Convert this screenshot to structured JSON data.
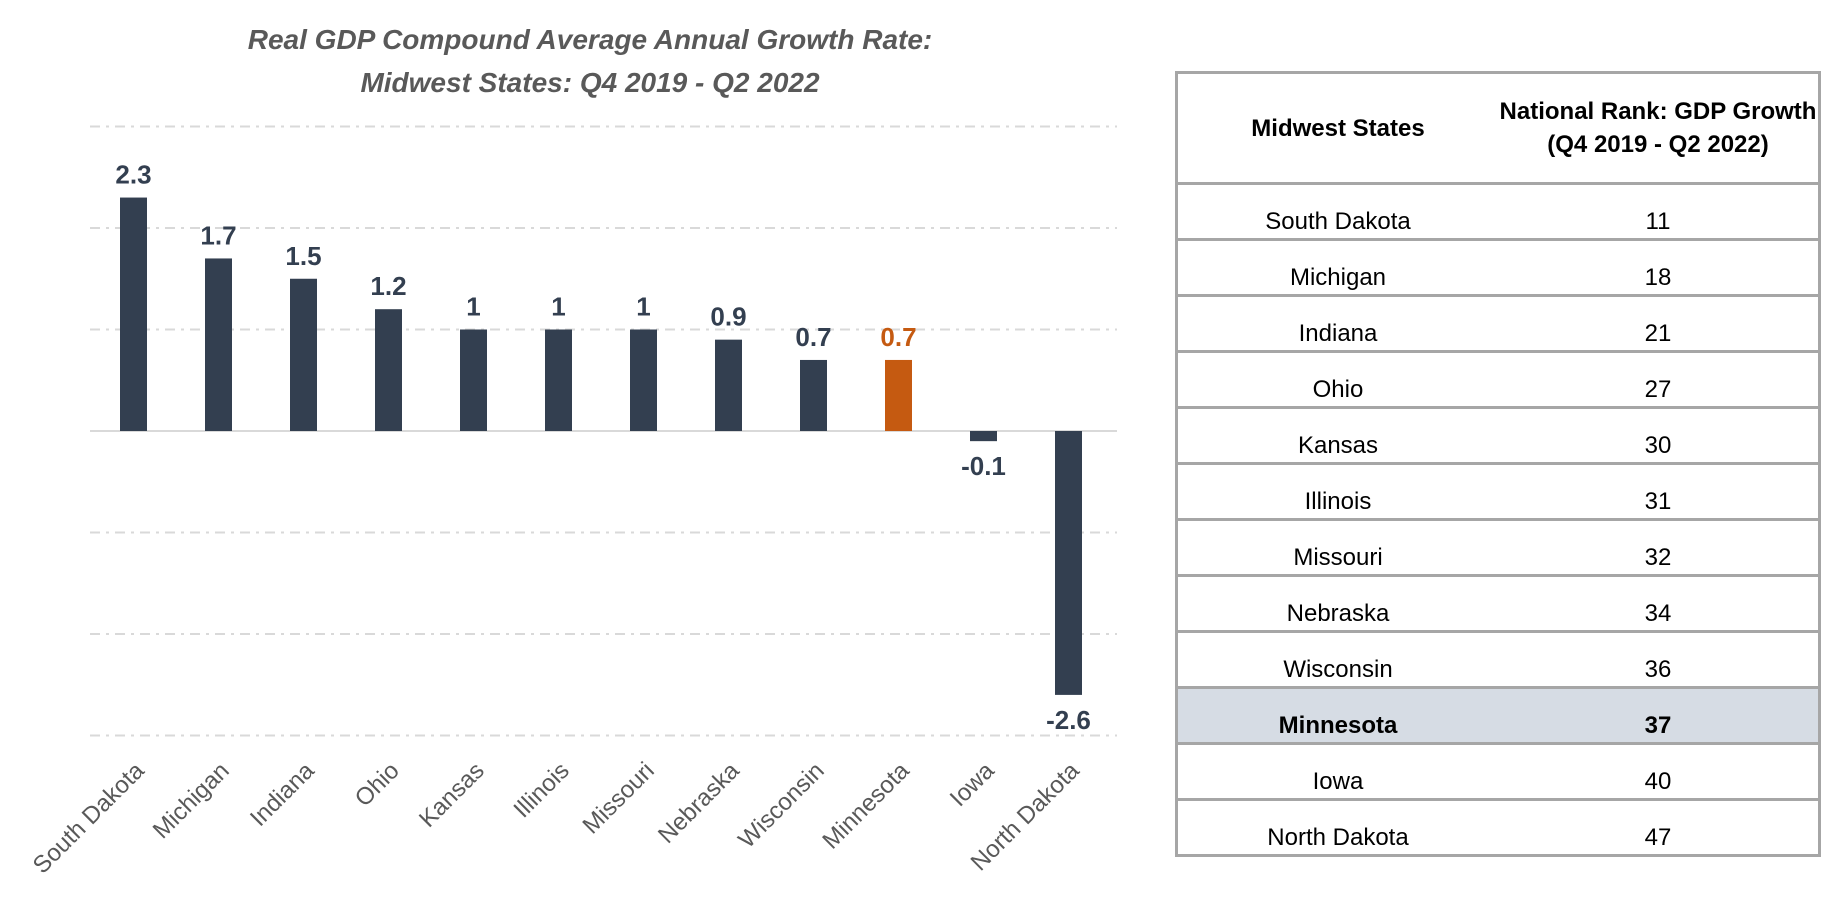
{
  "chart_data": {
    "type": "bar",
    "title": "Real GDP Compound Average Annual Growth Rate: Midwest States: Q4 2019 - Q2 2022",
    "title_lines": [
      "Real GDP Compound Average Annual Growth Rate:",
      "Midwest States: Q4 2019 - Q2 2022"
    ],
    "xlabel": "",
    "ylabel": "",
    "categories": [
      "South Dakota",
      "Michigan",
      "Indiana",
      "Ohio",
      "Kansas",
      "Illinois",
      "Missouri",
      "Nebraska",
      "Wisconsin",
      "Minnesota",
      "Iowa",
      "North Dakota"
    ],
    "values": [
      2.3,
      1.7,
      1.5,
      1.2,
      1,
      1,
      1,
      0.9,
      0.7,
      0.7,
      -0.1,
      -2.6
    ],
    "data_labels": [
      "2.3",
      "1.7",
      "1.5",
      "1.2",
      "1",
      "1",
      "1",
      "0.9",
      "0.7",
      "0.7",
      "-0.1",
      "-2.6"
    ],
    "highlight_category": "Minnesota",
    "ylim": [
      -3,
      3
    ],
    "gridlines": [
      -3,
      -2,
      -1,
      1,
      2,
      3
    ],
    "grid": true,
    "y_tick_labels_visible": false,
    "legend": "none",
    "colors": {
      "bar": "#333f50",
      "highlight": "#c55a11",
      "grid": "#d9d9d9",
      "axis": "#d9d9d9",
      "category_label": "#595959"
    }
  },
  "table": {
    "headers": [
      "Midwest States",
      "National Rank: GDP Growth (Q4 2019 - Q2 2022)"
    ],
    "header_lines": {
      "col2": [
        "National Rank: GDP Growth",
        "(Q4 2019 - Q2 2022)"
      ]
    },
    "rows": [
      {
        "state": "South Dakota",
        "rank": "11",
        "highlight": false
      },
      {
        "state": "Michigan",
        "rank": "18",
        "highlight": false
      },
      {
        "state": "Indiana",
        "rank": "21",
        "highlight": false
      },
      {
        "state": "Ohio",
        "rank": "27",
        "highlight": false
      },
      {
        "state": "Kansas",
        "rank": "30",
        "highlight": false
      },
      {
        "state": "Illinois",
        "rank": "31",
        "highlight": false
      },
      {
        "state": "Missouri",
        "rank": "32",
        "highlight": false
      },
      {
        "state": "Nebraska",
        "rank": "34",
        "highlight": false
      },
      {
        "state": "Wisconsin",
        "rank": "36",
        "highlight": false
      },
      {
        "state": "Minnesota",
        "rank": "37",
        "highlight": true
      },
      {
        "state": "Iowa",
        "rank": "40",
        "highlight": false
      },
      {
        "state": "North Dakota",
        "rank": "47",
        "highlight": false
      }
    ],
    "highlight_bg": "#d6dce4"
  }
}
